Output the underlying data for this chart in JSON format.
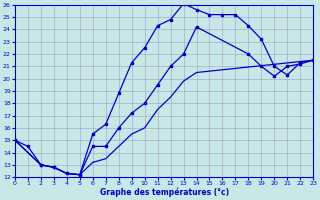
{
  "xlabel": "Graphe des températures (°c)",
  "bg_color": "#c8e8e8",
  "grid_color": "#aaaacc",
  "line_color": "#0000cc",
  "xlim": [
    0,
    23
  ],
  "ylim": [
    12,
    26
  ],
  "xticks": [
    0,
    1,
    2,
    3,
    4,
    5,
    6,
    7,
    8,
    9,
    10,
    11,
    12,
    13,
    14,
    15,
    16,
    17,
    18,
    19,
    20,
    21,
    22,
    23
  ],
  "yticks": [
    12,
    13,
    14,
    15,
    16,
    17,
    18,
    19,
    20,
    21,
    22,
    23,
    24,
    25,
    26
  ],
  "s1_x": [
    0,
    1,
    2,
    3,
    4,
    5,
    6,
    7,
    8,
    9,
    10,
    11,
    12,
    13,
    14,
    15,
    16,
    17,
    18,
    19,
    20,
    21,
    22,
    23
  ],
  "s1_y": [
    15,
    14.5,
    13.0,
    12.8,
    12.3,
    12.2,
    15.5,
    16.3,
    18.8,
    21.3,
    22.5,
    24.3,
    24.8,
    26.1,
    25.6,
    25.2,
    25.2,
    25.2,
    24.3,
    23.2,
    21.0,
    20.3,
    21.3,
    21.5
  ],
  "s2_x": [
    0,
    2,
    3,
    4,
    5,
    6,
    7,
    8,
    9,
    10,
    11,
    12,
    13,
    14,
    18,
    19,
    20,
    21,
    22,
    23
  ],
  "s2_y": [
    15,
    13.0,
    12.8,
    12.3,
    12.2,
    14.5,
    14.5,
    16.0,
    17.2,
    18.0,
    19.5,
    21.0,
    22.0,
    24.2,
    22.0,
    21.0,
    20.2,
    21.0,
    21.2,
    21.5
  ],
  "s3_x": [
    0,
    2,
    3,
    4,
    5,
    6,
    7,
    8,
    9,
    10,
    11,
    12,
    13,
    14,
    23
  ],
  "s3_y": [
    15,
    13.0,
    12.8,
    12.3,
    12.2,
    13.2,
    13.5,
    14.5,
    15.5,
    16.0,
    17.5,
    18.5,
    19.8,
    20.5,
    21.5
  ]
}
